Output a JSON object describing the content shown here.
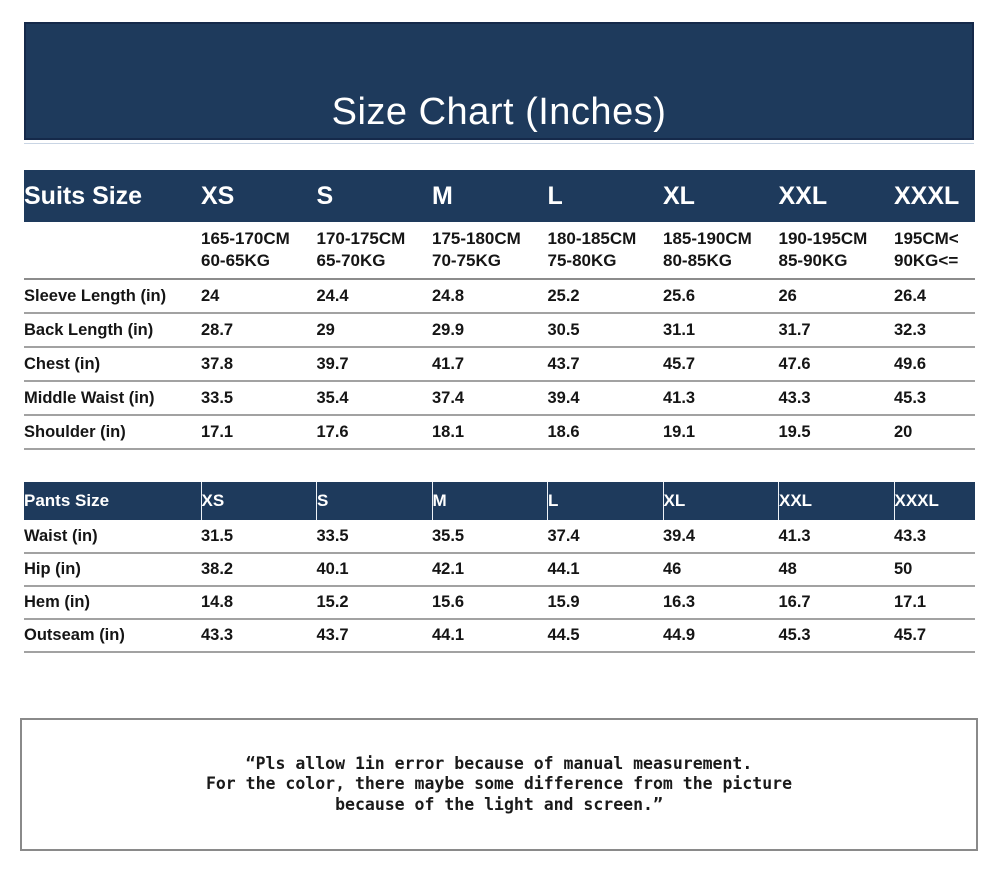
{
  "banner": {
    "title": "Size Chart (Inches)"
  },
  "colors": {
    "navy": "#1e3a5c",
    "navy_border": "#15294a",
    "row_separator": "#a2a2a2",
    "strong_separator": "#8c8c8c",
    "note_border": "#8a8a8a",
    "header_text": "#ffffff",
    "body_text": "#151515",
    "background": "#ffffff"
  },
  "suits_table": {
    "corner_label": "Suits Size",
    "sizes": [
      "XS",
      "S",
      "M",
      "L",
      "XL",
      "XXL",
      "XXXL"
    ],
    "height_row": [
      "165-170CM",
      "170-175CM",
      "175-180CM",
      "180-185CM",
      "185-190CM",
      "190-195CM",
      "195CM<"
    ],
    "weight_row": [
      "60-65KG",
      "65-70KG",
      "70-75KG",
      "75-80KG",
      "80-85KG",
      "85-90KG",
      "90KG<="
    ],
    "rows": [
      {
        "label": "Sleeve Length (in)",
        "values": [
          "24",
          "24.4",
          "24.8",
          "25.2",
          "25.6",
          "26",
          "26.4"
        ]
      },
      {
        "label": "Back Length (in)",
        "values": [
          "28.7",
          "29",
          "29.9",
          "30.5",
          "31.1",
          "31.7",
          "32.3"
        ]
      },
      {
        "label": "Chest (in)",
        "values": [
          "37.8",
          "39.7",
          "41.7",
          "43.7",
          "45.7",
          "47.6",
          "49.6"
        ]
      },
      {
        "label": "Middle Waist (in)",
        "values": [
          "33.5",
          "35.4",
          "37.4",
          "39.4",
          "41.3",
          "43.3",
          "45.3"
        ]
      },
      {
        "label": "Shoulder (in)",
        "values": [
          "17.1",
          "17.6",
          "18.1",
          "18.6",
          "19.1",
          "19.5",
          "20"
        ]
      }
    ]
  },
  "pants_table": {
    "corner_label": "Pants Size",
    "sizes": [
      "XS",
      "S",
      "M",
      "L",
      "XL",
      "XXL",
      "XXXL"
    ],
    "rows": [
      {
        "label": "Waist (in)",
        "values": [
          "31.5",
          "33.5",
          "35.5",
          "37.4",
          "39.4",
          "41.3",
          "43.3"
        ]
      },
      {
        "label": "Hip (in)",
        "values": [
          "38.2",
          "40.1",
          "42.1",
          "44.1",
          "46",
          "48",
          "50"
        ]
      },
      {
        "label": "Hem (in)",
        "values": [
          "14.8",
          "15.2",
          "15.6",
          "15.9",
          "16.3",
          "16.7",
          "17.1"
        ]
      },
      {
        "label": "Outseam (in)",
        "values": [
          "43.3",
          "43.7",
          "44.1",
          "44.5",
          "44.9",
          "45.3",
          "45.7"
        ]
      }
    ]
  },
  "note": {
    "lines": [
      "“Pls allow 1in error because of manual measurement.",
      "For the color, there maybe some difference from the picture",
      "because of the light and screen.”"
    ]
  },
  "chart_data": [
    {
      "type": "table",
      "title": "Size Chart (Inches) — Suits Size",
      "columns": [
        "Suits Size",
        "XS",
        "S",
        "M",
        "L",
        "XL",
        "XXL",
        "XXXL"
      ],
      "height_range_cm": [
        "165-170CM",
        "170-175CM",
        "175-180CM",
        "180-185CM",
        "185-190CM",
        "190-195CM",
        "195CM<"
      ],
      "weight_range_kg": [
        "60-65KG",
        "65-70KG",
        "70-75KG",
        "75-80KG",
        "80-85KG",
        "85-90KG",
        "90KG<="
      ],
      "rows": [
        [
          "Sleeve Length (in)",
          24,
          24.4,
          24.8,
          25.2,
          25.6,
          26,
          26.4
        ],
        [
          "Back Length (in)",
          28.7,
          29,
          29.9,
          30.5,
          31.1,
          31.7,
          32.3
        ],
        [
          "Chest (in)",
          37.8,
          39.7,
          41.7,
          43.7,
          45.7,
          47.6,
          49.6
        ],
        [
          "Middle Waist (in)",
          33.5,
          35.4,
          37.4,
          39.4,
          41.3,
          43.3,
          45.3
        ],
        [
          "Shoulder (in)",
          17.1,
          17.6,
          18.1,
          18.6,
          19.1,
          19.5,
          20
        ]
      ]
    },
    {
      "type": "table",
      "title": "Size Chart (Inches) — Pants Size",
      "columns": [
        "Pants Size",
        "XS",
        "S",
        "M",
        "L",
        "XL",
        "XXL",
        "XXXL"
      ],
      "rows": [
        [
          "Waist (in)",
          31.5,
          33.5,
          35.5,
          37.4,
          39.4,
          41.3,
          43.3
        ],
        [
          "Hip (in)",
          38.2,
          40.1,
          42.1,
          44.1,
          46,
          48,
          50
        ],
        [
          "Hem (in)",
          14.8,
          15.2,
          15.6,
          15.9,
          16.3,
          16.7,
          17.1
        ],
        [
          "Outseam (in)",
          43.3,
          43.7,
          44.1,
          44.5,
          44.9,
          45.3,
          45.7
        ]
      ]
    }
  ]
}
